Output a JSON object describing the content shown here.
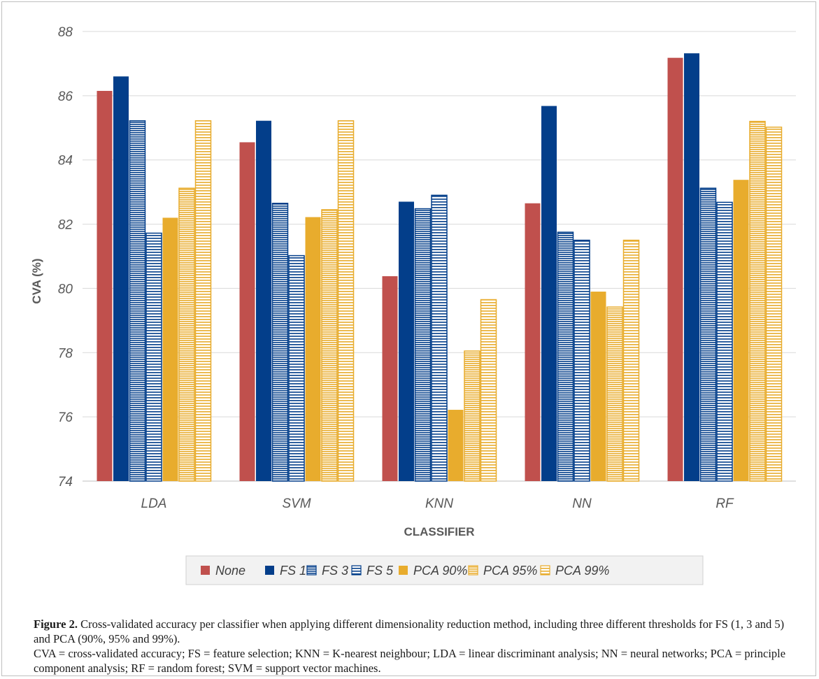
{
  "chart_data": {
    "type": "bar",
    "title": "",
    "xlabel": "CLASSIFIER",
    "ylabel": "CVA (%)",
    "ylim": [
      74,
      88
    ],
    "yticks": [
      74,
      76,
      78,
      80,
      82,
      84,
      86,
      88
    ],
    "grid": true,
    "legend_position": "bottom",
    "categories": [
      "LDA",
      "SVM",
      "KNN",
      "NN",
      "RF"
    ],
    "series": [
      {
        "name": "None",
        "color": "#c0504d",
        "pattern": "solid",
        "values": [
          86.15,
          84.55,
          80.38,
          82.65,
          87.18
        ]
      },
      {
        "name": "FS 1",
        "color": "#033e8a",
        "pattern": "solid",
        "values": [
          86.6,
          85.22,
          82.7,
          85.68,
          87.32
        ]
      },
      {
        "name": "FS 3",
        "color": "#033e8a",
        "pattern": "dense-stripes",
        "values": [
          85.22,
          82.65,
          82.48,
          81.75,
          83.12
        ]
      },
      {
        "name": "FS 5",
        "color": "#033e8a",
        "pattern": "wide-stripes",
        "values": [
          81.72,
          81.02,
          82.9,
          81.5,
          82.68
        ]
      },
      {
        "name": "PCA 90%",
        "color": "#e8ac2d",
        "pattern": "solid",
        "values": [
          82.2,
          82.22,
          76.22,
          79.9,
          83.38
        ]
      },
      {
        "name": "PCA 95%",
        "color": "#e8ac2d",
        "pattern": "dense-stripes",
        "values": [
          83.12,
          82.45,
          78.05,
          79.42,
          85.2
        ]
      },
      {
        "name": "PCA 99%",
        "color": "#e8ac2d",
        "pattern": "wide-stripes",
        "values": [
          85.22,
          85.22,
          79.65,
          81.5,
          85.02
        ]
      }
    ]
  },
  "caption": {
    "label": "Figure 2.",
    "text": " Cross-validated accuracy per classifier when applying different dimensionality reduction method, including three different thresholds for FS (1, 3 and 5) and PCA (90%, 95% and 99%).",
    "abbreviations": "CVA = cross-validated accuracy; FS = feature selection; KNN = K-nearest neighbour; LDA = linear discriminant analysis; NN = neural networks; PCA = principle component analysis; RF = random forest; SVM = support vector machines."
  }
}
